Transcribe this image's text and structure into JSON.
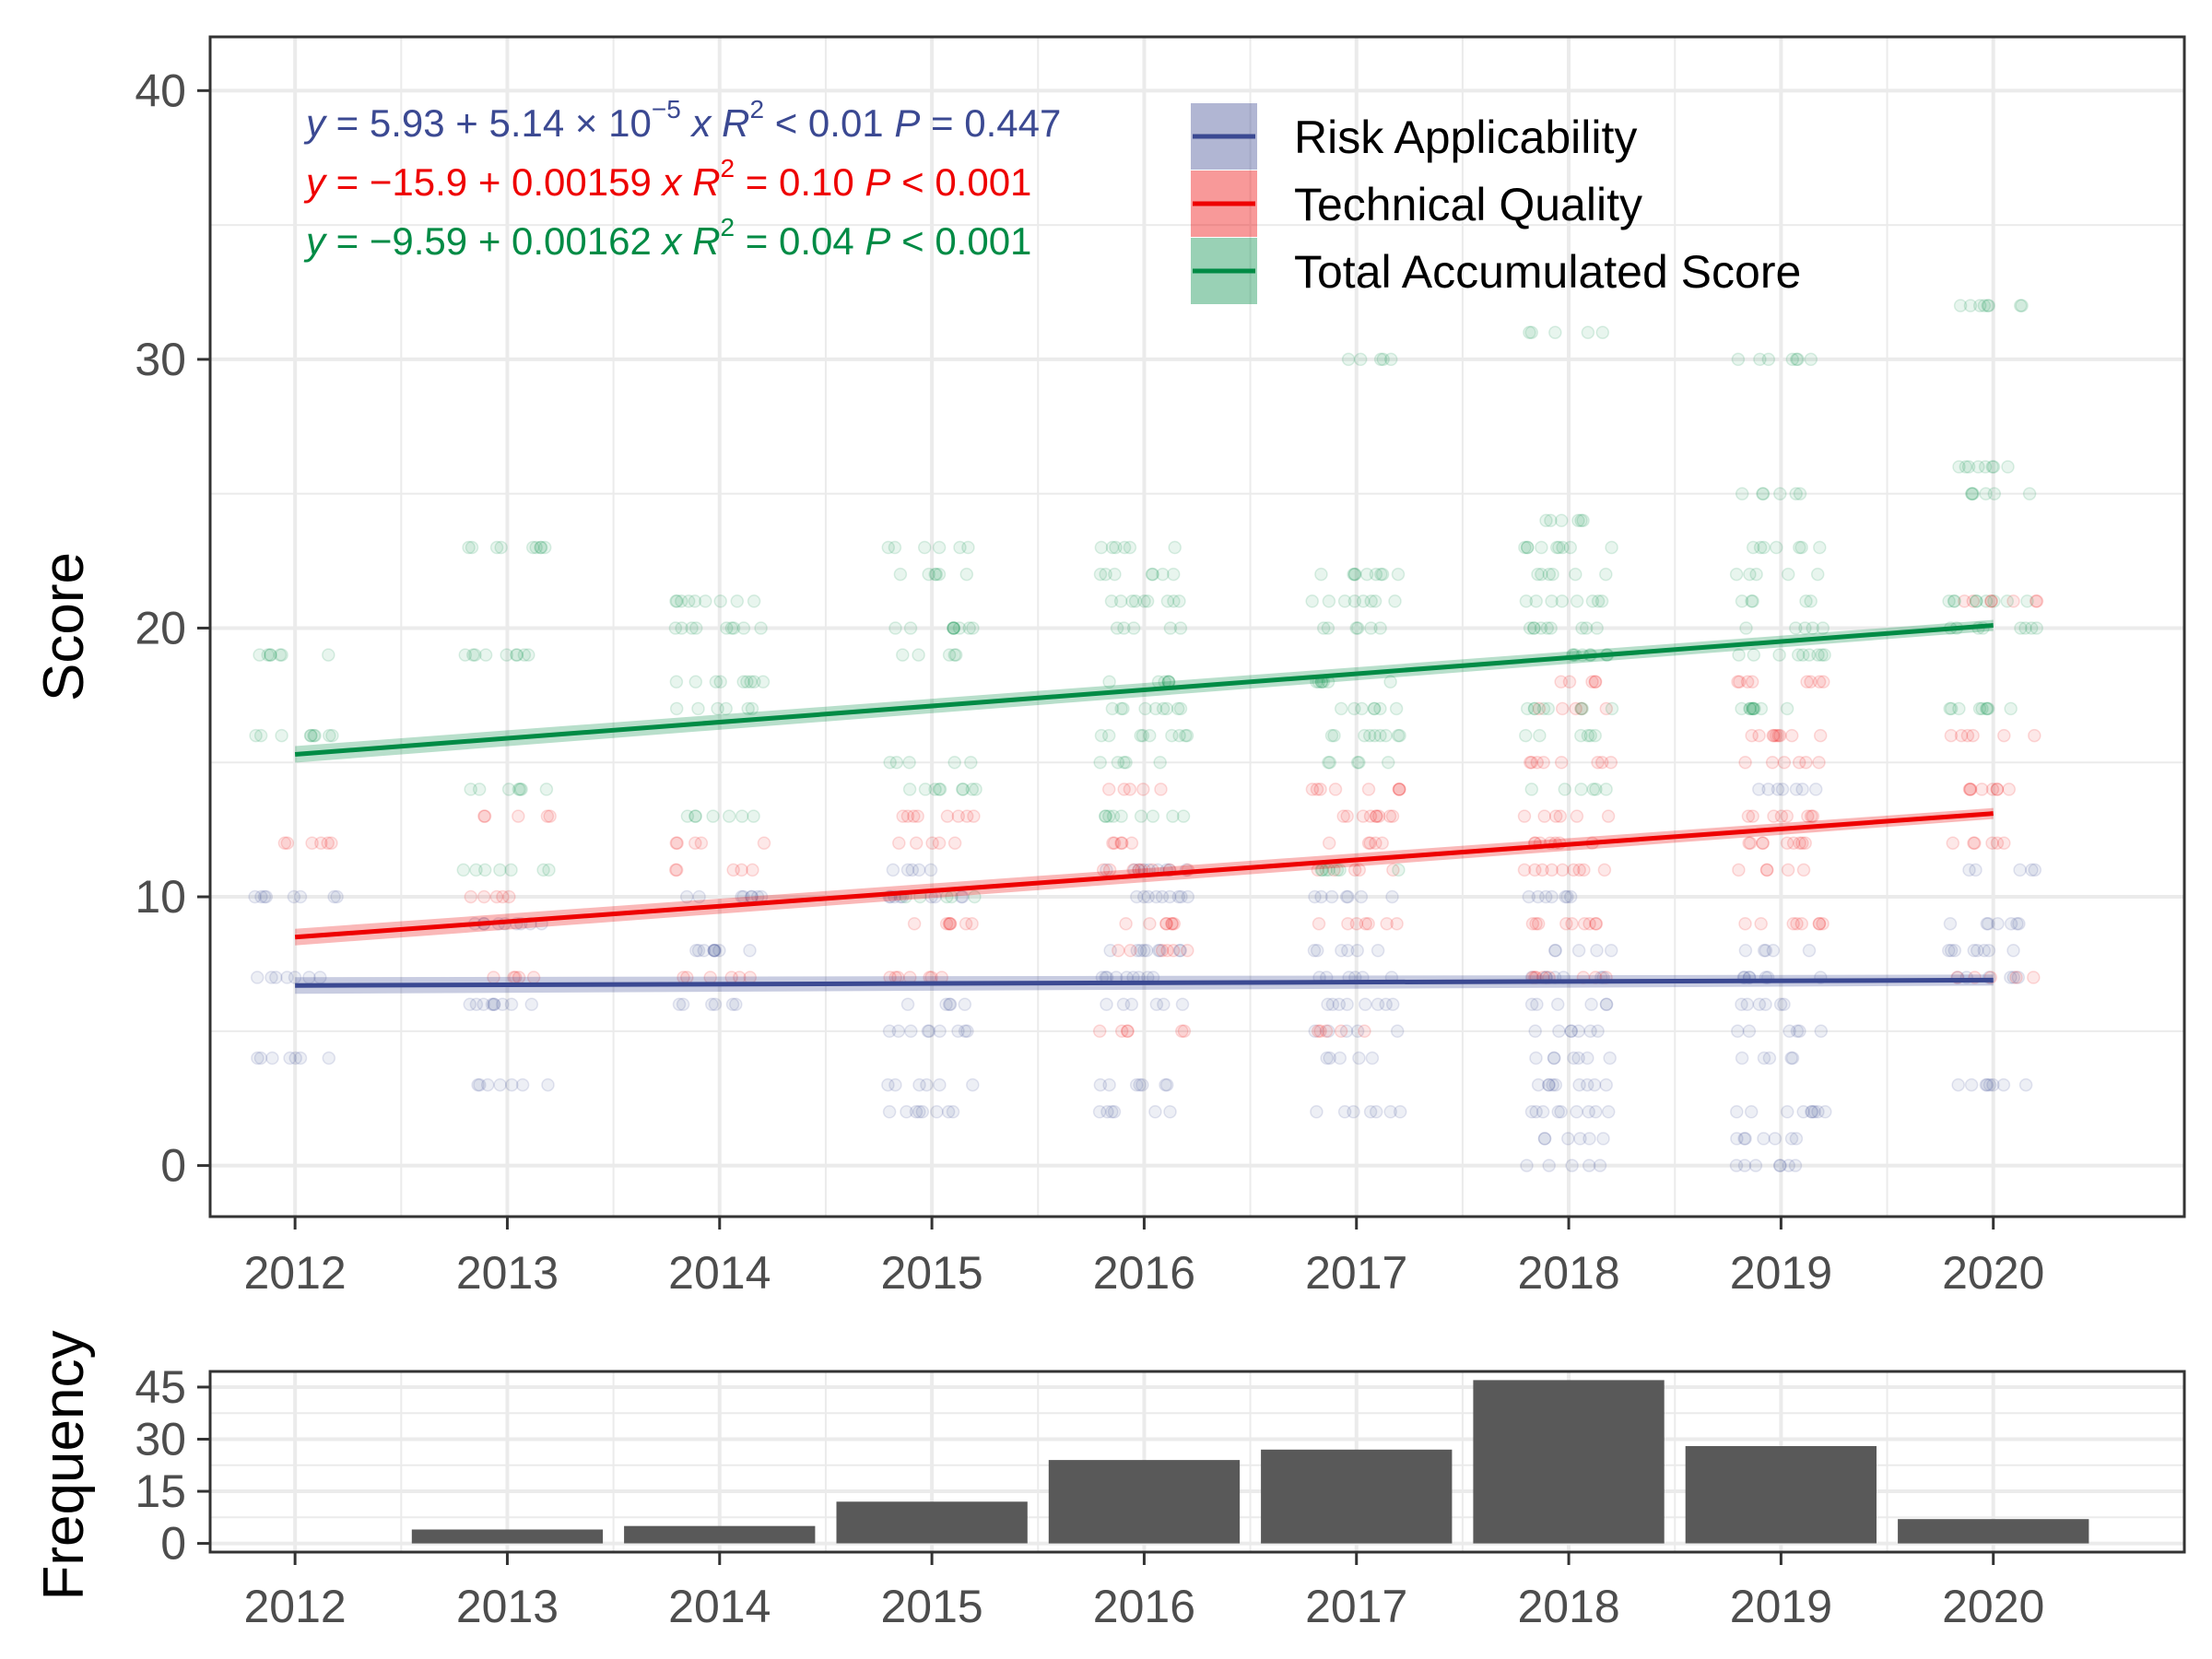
{
  "chart_data": [
    {
      "type": "scatter",
      "ylabel": "Score",
      "xlim": [
        2011.6,
        2020.9
      ],
      "ylim": [
        -1.9,
        42
      ],
      "x_ticks": [
        "2012",
        "2013",
        "2014",
        "2015",
        "2016",
        "2017",
        "2018",
        "2019",
        "2020"
      ],
      "y_ticks": [
        "0",
        "10",
        "20",
        "30",
        "40"
      ],
      "grid": true,
      "legend_placement": "top-right",
      "series": [
        {
          "name": "Risk Applicability",
          "color": "#3b4992",
          "fit": {
            "x_start": 2012,
            "x_end": 2020,
            "y_start": 6.7,
            "y_end": 6.9
          },
          "equation": {
            "intercept": "5.93",
            "slope_mantissa": "5.14",
            "slope_exp": "−5",
            "r2_op": "<",
            "r2_val": "0.01",
            "p_op": "=",
            "p_val": "0.447"
          },
          "points": [
            {
              "x": 2012,
              "ys": [
                4,
                7,
                10
              ]
            },
            {
              "x": 2013,
              "ys": [
                3,
                6,
                9
              ]
            },
            {
              "x": 2014,
              "ys": [
                6,
                8,
                10
              ]
            },
            {
              "x": 2015,
              "ys": [
                2,
                3,
                5,
                6,
                10,
                11
              ]
            },
            {
              "x": 2016,
              "ys": [
                2,
                3,
                6,
                7,
                8,
                10,
                11
              ]
            },
            {
              "x": 2017,
              "ys": [
                2,
                4,
                5,
                6,
                7,
                8,
                10
              ]
            },
            {
              "x": 2018,
              "ys": [
                0,
                1,
                2,
                3,
                4,
                5,
                6,
                7,
                8,
                10
              ]
            },
            {
              "x": 2019,
              "ys": [
                0,
                1,
                2,
                4,
                5,
                6,
                7,
                8,
                14
              ]
            },
            {
              "x": 2020,
              "ys": [
                3,
                7,
                8,
                9,
                11
              ]
            }
          ]
        },
        {
          "name": "Technical Quality",
          "color": "#ee0000",
          "fit": {
            "x_start": 2012,
            "x_end": 2020,
            "y_start": 8.5,
            "y_end": 13.1
          },
          "equation": {
            "intercept": "−15.9",
            "slope": "0.00159",
            "r2_op": "=",
            "r2_val": "0.10",
            "p_op": "<",
            "p_val": "0.001"
          },
          "points": [
            {
              "x": 2012,
              "ys": [
                12
              ]
            },
            {
              "x": 2013,
              "ys": [
                7,
                10,
                13
              ]
            },
            {
              "x": 2014,
              "ys": [
                7,
                11,
                12
              ]
            },
            {
              "x": 2015,
              "ys": [
                7,
                9,
                12,
                13
              ]
            },
            {
              "x": 2016,
              "ys": [
                5,
                8,
                9,
                11,
                12,
                14
              ]
            },
            {
              "x": 2017,
              "ys": [
                5,
                9,
                11,
                12,
                13,
                14
              ]
            },
            {
              "x": 2018,
              "ys": [
                7,
                9,
                11,
                12,
                13,
                15,
                17,
                18
              ]
            },
            {
              "x": 2019,
              "ys": [
                9,
                11,
                12,
                13,
                15,
                16,
                18
              ]
            },
            {
              "x": 2020,
              "ys": [
                7,
                12,
                14,
                16,
                21
              ]
            }
          ]
        },
        {
          "name": "Total Accumulated Score",
          "color": "#008b45",
          "fit": {
            "x_start": 2012,
            "x_end": 2020,
            "y_start": 15.3,
            "y_end": 20.1
          },
          "equation": {
            "intercept": "−9.59",
            "slope": "0.00162",
            "r2_op": "=",
            "r2_val": "0.04",
            "p_op": "<",
            "p_val": "0.001"
          },
          "points": [
            {
              "x": 2012,
              "ys": [
                16,
                19
              ]
            },
            {
              "x": 2013,
              "ys": [
                11,
                14,
                19,
                23
              ]
            },
            {
              "x": 2014,
              "ys": [
                13,
                17,
                18,
                20,
                21
              ]
            },
            {
              "x": 2015,
              "ys": [
                10,
                14,
                15,
                19,
                20,
                22,
                23
              ]
            },
            {
              "x": 2016,
              "ys": [
                13,
                15,
                16,
                17,
                18,
                20,
                21,
                22,
                23
              ]
            },
            {
              "x": 2017,
              "ys": [
                11,
                15,
                16,
                17,
                18,
                20,
                21,
                22,
                30
              ]
            },
            {
              "x": 2018,
              "ys": [
                14,
                16,
                17,
                19,
                20,
                21,
                22,
                23,
                24,
                31
              ]
            },
            {
              "x": 2019,
              "ys": [
                17,
                19,
                20,
                21,
                22,
                23,
                25,
                30
              ]
            },
            {
              "x": 2020,
              "ys": [
                17,
                20,
                21,
                25,
                26,
                32
              ]
            }
          ]
        }
      ]
    },
    {
      "type": "bar",
      "ylabel": "Frequency",
      "categories": [
        "2012",
        "2013",
        "2014",
        "2015",
        "2016",
        "2017",
        "2018",
        "2019",
        "2020"
      ],
      "values": [
        0,
        4,
        5,
        12,
        24,
        27,
        47,
        28,
        7
      ],
      "xlim": [
        2011.6,
        2020.9
      ],
      "ylim": [
        -2.5,
        49.5
      ],
      "y_ticks": [
        "0",
        "15",
        "30",
        "45"
      ],
      "bar_color": "#595959",
      "grid": true
    }
  ]
}
